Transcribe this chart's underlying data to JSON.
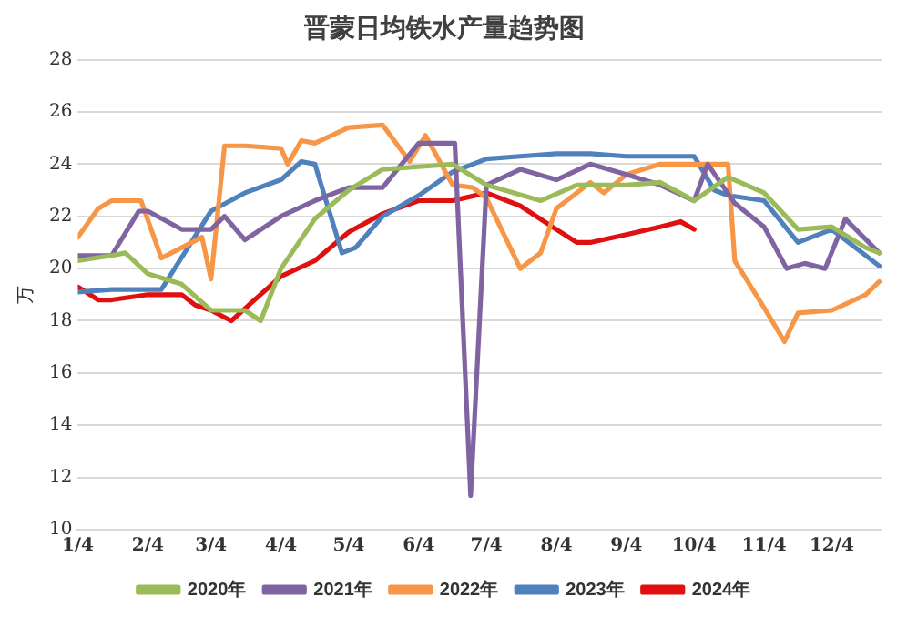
{
  "chart_data": {
    "type": "line",
    "title": "晋蒙日均铁水产量趋势图",
    "ylabel": "万",
    "ylim": [
      10,
      28
    ],
    "yticks": [
      10,
      12,
      14,
      16,
      18,
      20,
      22,
      24,
      26,
      28
    ],
    "xlim": [
      "--01-04",
      "--12-26"
    ],
    "xticks": [
      {
        "value": "--01-04",
        "label": "1/4"
      },
      {
        "value": "--02-04",
        "label": "2/4"
      },
      {
        "value": "--03-04",
        "label": "3/4"
      },
      {
        "value": "--04-04",
        "label": "4/4"
      },
      {
        "value": "--05-04",
        "label": "5/4"
      },
      {
        "value": "--06-04",
        "label": "6/4"
      },
      {
        "value": "--07-04",
        "label": "7/4"
      },
      {
        "value": "--08-04",
        "label": "8/4"
      },
      {
        "value": "--09-04",
        "label": "9/4"
      },
      {
        "value": "--10-04",
        "label": "10/4"
      },
      {
        "value": "--11-04",
        "label": "11/4"
      },
      {
        "value": "--12-04",
        "label": "12/4"
      }
    ],
    "grid": "y",
    "legend": "bottom",
    "marker": "none",
    "line_style": "solid",
    "series": [
      {
        "name": "2020年",
        "color": "#9bbb59",
        "x": [
          "--01-04",
          "--01-19",
          "--01-25",
          "--02-04",
          "--02-19",
          "--03-04",
          "--03-19",
          "--03-26",
          "--04-04",
          "--04-19",
          "--05-04",
          "--05-19",
          "--06-04",
          "--06-19",
          "--07-04",
          "--07-28",
          "--08-13",
          "--09-04",
          "--09-19",
          "--10-04",
          "--10-19",
          "--11-04",
          "--11-19",
          "--12-04",
          "--12-19",
          "--12-25"
        ],
        "values": [
          20.3,
          20.5,
          20.6,
          19.8,
          19.4,
          18.4,
          18.4,
          18.0,
          20.0,
          21.9,
          23.0,
          23.8,
          23.9,
          24.0,
          23.2,
          22.6,
          23.2,
          23.2,
          23.3,
          22.6,
          23.5,
          22.9,
          21.5,
          21.6,
          20.8,
          20.6
        ]
      },
      {
        "name": "2021年",
        "color": "#8064a2",
        "x": [
          "--01-04",
          "--01-19",
          "--01-31",
          "--02-04",
          "--02-19",
          "--03-04",
          "--03-10",
          "--03-19",
          "--04-04",
          "--04-19",
          "--05-04",
          "--05-19",
          "--06-04",
          "--06-20",
          "--06-27",
          "--07-04",
          "--07-19",
          "--08-04",
          "--08-19",
          "--09-04",
          "--09-19",
          "--10-04",
          "--10-10",
          "--10-22",
          "--11-04",
          "--11-14",
          "--11-22",
          "--12-01",
          "--12-10",
          "--12-25"
        ],
        "values": [
          20.5,
          20.5,
          22.2,
          22.2,
          21.5,
          21.5,
          22.0,
          21.1,
          22.0,
          22.6,
          23.1,
          23.1,
          24.8,
          24.8,
          11.3,
          23.2,
          23.8,
          23.4,
          24.0,
          23.6,
          23.2,
          22.6,
          24.0,
          22.5,
          21.6,
          20.0,
          20.2,
          20.0,
          21.9,
          20.6
        ]
      },
      {
        "name": "2022年",
        "color": "#f79646",
        "x": [
          "--01-04",
          "--01-13",
          "--01-19",
          "--02-01",
          "--02-10",
          "--02-19",
          "--02-28",
          "--03-04",
          "--03-10",
          "--03-19",
          "--04-04",
          "--04-07",
          "--04-13",
          "--04-19",
          "--05-04",
          "--05-19",
          "--05-31",
          "--06-07",
          "--06-19",
          "--06-28",
          "--07-04",
          "--07-19",
          "--07-28",
          "--08-04",
          "--08-19",
          "--08-25",
          "--09-04",
          "--09-19",
          "--10-04",
          "--10-19",
          "--10-22",
          "--11-04",
          "--11-13",
          "--11-19",
          "--12-04",
          "--12-19",
          "--12-25"
        ],
        "values": [
          21.2,
          22.3,
          22.6,
          22.6,
          20.4,
          20.8,
          21.2,
          19.6,
          24.7,
          24.7,
          24.6,
          24.0,
          24.9,
          24.8,
          25.4,
          25.5,
          24.1,
          25.1,
          23.2,
          23.1,
          22.7,
          20.0,
          20.6,
          22.3,
          23.3,
          22.9,
          23.6,
          24.0,
          24.0,
          24.0,
          20.3,
          18.5,
          17.2,
          18.3,
          18.4,
          19.0,
          19.5
        ]
      },
      {
        "name": "2023年",
        "color": "#4f81bd",
        "x": [
          "--01-04",
          "--01-19",
          "--02-04",
          "--02-10",
          "--03-04",
          "--03-19",
          "--04-04",
          "--04-13",
          "--04-19",
          "--05-01",
          "--05-07",
          "--05-19",
          "--06-04",
          "--06-19",
          "--07-04",
          "--07-19",
          "--08-04",
          "--08-19",
          "--09-04",
          "--09-19",
          "--10-04",
          "--10-13",
          "--10-19",
          "--11-04",
          "--11-19",
          "--12-04",
          "--12-19",
          "--12-25"
        ],
        "values": [
          19.1,
          19.2,
          19.2,
          19.2,
          22.2,
          22.9,
          23.4,
          24.1,
          24.0,
          20.6,
          20.8,
          22.0,
          22.8,
          23.7,
          24.2,
          24.3,
          24.4,
          24.4,
          24.3,
          24.3,
          24.3,
          23.0,
          22.8,
          22.6,
          21.0,
          21.5,
          20.5,
          20.1
        ]
      },
      {
        "name": "2024年",
        "color": "#e01010",
        "x": [
          "--01-04",
          "--01-13",
          "--01-19",
          "--02-04",
          "--02-19",
          "--02-25",
          "--03-04",
          "--03-13",
          "--03-22",
          "--04-04",
          "--04-19",
          "--05-04",
          "--05-19",
          "--06-04",
          "--06-19",
          "--07-04",
          "--07-19",
          "--08-04",
          "--08-13",
          "--08-19",
          "--09-04",
          "--09-19",
          "--09-28",
          "--10-04"
        ],
        "values": [
          19.3,
          18.8,
          18.8,
          19.0,
          19.0,
          18.6,
          18.4,
          18.0,
          18.7,
          19.7,
          20.3,
          21.4,
          22.1,
          22.6,
          22.6,
          22.9,
          22.4,
          21.5,
          21.0,
          21.0,
          21.3,
          21.6,
          21.8,
          21.5
        ]
      }
    ]
  }
}
